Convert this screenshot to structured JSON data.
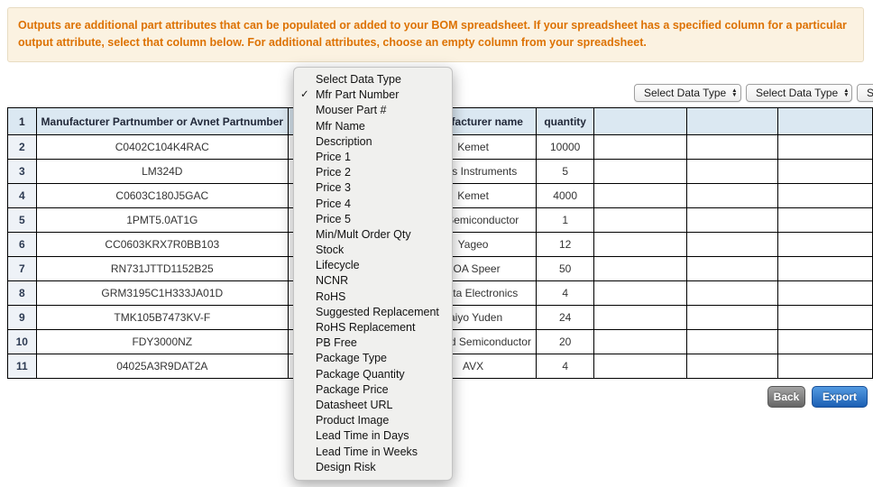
{
  "banner": {
    "text": "Outputs are additional part attributes that can be populated or added to your BOM spreadsheet. If your spreadsheet has a specified column for a particular output attribute, select that column below. For additional attributes, choose an empty column from your spreadsheet."
  },
  "selects": {
    "label": "Select Data Type"
  },
  "dropdown": {
    "checked_item": "Mfr Part Number",
    "items": [
      {
        "label": "Select Data Type",
        "checked": false
      },
      {
        "label": "Mfr Part Number",
        "checked": true
      },
      {
        "label": "Mouser Part #",
        "checked": false
      },
      {
        "label": "Mfr Name",
        "checked": false
      },
      {
        "label": "Description",
        "checked": false
      },
      {
        "label": "Price 1",
        "checked": false
      },
      {
        "label": "Price 2",
        "checked": false
      },
      {
        "label": "Price 3",
        "checked": false
      },
      {
        "label": "Price 4",
        "checked": false
      },
      {
        "label": "Price 5",
        "checked": false
      },
      {
        "label": "Min/Mult Order Qty",
        "checked": false
      },
      {
        "label": "Stock",
        "checked": false
      },
      {
        "label": "Lifecycle",
        "checked": false
      },
      {
        "label": "NCNR",
        "checked": false
      },
      {
        "label": "RoHS",
        "checked": false
      },
      {
        "label": "Suggested Replacement",
        "checked": false
      },
      {
        "label": "RoHS Replacement",
        "checked": false
      },
      {
        "label": "PB Free",
        "checked": false
      },
      {
        "label": "Package Type",
        "checked": false
      },
      {
        "label": "Package Quantity",
        "checked": false
      },
      {
        "label": "Package Price",
        "checked": false
      },
      {
        "label": "Datasheet URL",
        "checked": false
      },
      {
        "label": "Product Image",
        "checked": false
      },
      {
        "label": "Lead Time in Days",
        "checked": false
      },
      {
        "label": "Lead Time in Weeks",
        "checked": false
      },
      {
        "label": "Design Risk",
        "checked": false
      }
    ]
  },
  "table": {
    "header": {
      "row_num": "1",
      "part": "Manufacturer Partnumber or Avnet Partnumber",
      "hidden_col": "",
      "manufacturer": "Manufacturer name",
      "quantity": "quantity",
      "empty1": "",
      "empty2": "",
      "empty3": ""
    },
    "rows": [
      {
        "num": "2",
        "part": "C0402C104K4RAC",
        "manufacturer": "Kemet",
        "quantity": "10000"
      },
      {
        "num": "3",
        "part": "LM324D",
        "manufacturer": "Texas Instruments",
        "quantity": "5"
      },
      {
        "num": "4",
        "part": "C0603C180J5GAC",
        "manufacturer": "Kemet",
        "quantity": "4000"
      },
      {
        "num": "5",
        "part": "1PMT5.0AT1G",
        "manufacturer": "ON Semiconductor",
        "quantity": "1"
      },
      {
        "num": "6",
        "part": "CC0603KRX7R0BB103",
        "manufacturer": "Yageo",
        "quantity": "12"
      },
      {
        "num": "7",
        "part": "RN731JTTD1152B25",
        "manufacturer": "KOA Speer",
        "quantity": "50"
      },
      {
        "num": "8",
        "part": "GRM3195C1H333JA01D",
        "manufacturer": "Murata Electronics",
        "quantity": "4"
      },
      {
        "num": "9",
        "part": "TMK105B7473KV-F",
        "manufacturer": "Taiyo Yuden",
        "quantity": "24"
      },
      {
        "num": "10",
        "part": "FDY3000NZ",
        "manufacturer": "Fairchild Semiconductor",
        "quantity": "20"
      },
      {
        "num": "11",
        "part": "04025A3R9DAT2A",
        "manufacturer": "AVX",
        "quantity": "4"
      }
    ]
  },
  "buttons": {
    "back": "Back",
    "export": "Export"
  },
  "icons": {
    "stepper_up": "▲",
    "stepper_down": "▼",
    "checkmark": "✓"
  },
  "colors": {
    "banner_text": "#dd7203",
    "banner_bg": "#fbf2e1",
    "header_bg": "#dbe8f2",
    "rownum_bg": "#eef2f7",
    "export_blue": "#1b5fb4",
    "back_gray": "#656565",
    "menu_bg": "#f0f0ee"
  }
}
